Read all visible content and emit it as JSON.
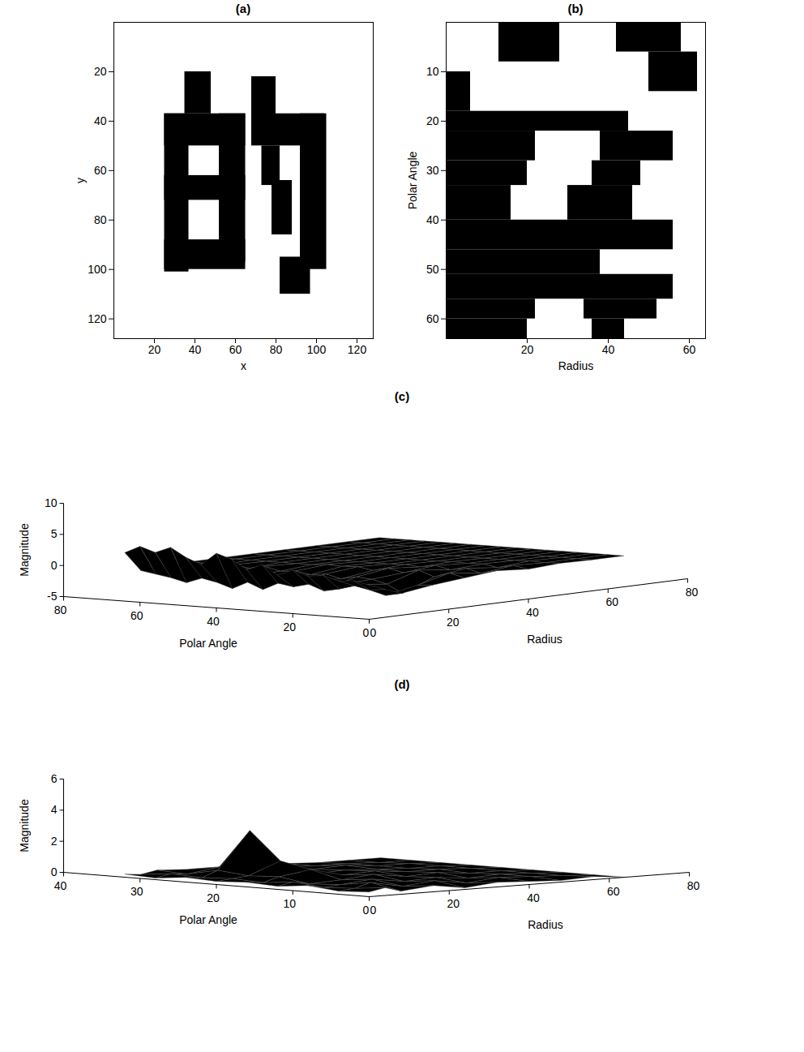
{
  "chart_data": [
    {
      "type": "image",
      "title": "(a)",
      "x_label": "x",
      "y_label": "y",
      "xlim": [
        0,
        128
      ],
      "ylim": [
        128,
        0
      ],
      "xticks": [
        20,
        40,
        60,
        80,
        100,
        120
      ],
      "yticks": [
        20,
        40,
        60,
        80,
        100,
        120
      ],
      "color": "black",
      "black_regions": [
        [
          25,
          37,
          37,
          101
        ],
        [
          35,
          48,
          20,
          37
        ],
        [
          25,
          65,
          37,
          50
        ],
        [
          52,
          65,
          37,
          97
        ],
        [
          25,
          65,
          62,
          72
        ],
        [
          25,
          65,
          88,
          100
        ],
        [
          68,
          80,
          22,
          47
        ],
        [
          68,
          104,
          37,
          50
        ],
        [
          92,
          105,
          37,
          100
        ],
        [
          82,
          97,
          95,
          110
        ],
        [
          73,
          82,
          50,
          66
        ],
        [
          78,
          88,
          64,
          86
        ]
      ]
    },
    {
      "type": "image",
      "title": "(b)",
      "x_label": "Radius",
      "y_label": "Polar Angle",
      "xlim": [
        0,
        64
      ],
      "ylim": [
        64,
        0
      ],
      "xticks": [
        20,
        40,
        60
      ],
      "yticks": [
        10,
        20,
        30,
        40,
        50,
        60
      ],
      "color": "black",
      "black_regions": [
        [
          13,
          28,
          0,
          8
        ],
        [
          42,
          58,
          0,
          6
        ],
        [
          50,
          62,
          6,
          14
        ],
        [
          0,
          6,
          10,
          18
        ],
        [
          0,
          45,
          18,
          22
        ],
        [
          0,
          22,
          22,
          28
        ],
        [
          38,
          56,
          22,
          28
        ],
        [
          0,
          20,
          28,
          33
        ],
        [
          36,
          48,
          28,
          33
        ],
        [
          0,
          16,
          33,
          40
        ],
        [
          30,
          46,
          33,
          40
        ],
        [
          0,
          56,
          40,
          46
        ],
        [
          0,
          38,
          46,
          51
        ],
        [
          0,
          56,
          51,
          56
        ],
        [
          0,
          22,
          56,
          60
        ],
        [
          34,
          52,
          56,
          60
        ],
        [
          0,
          20,
          60,
          64
        ],
        [
          36,
          44,
          60,
          64
        ]
      ]
    },
    {
      "type": "surface",
      "title": "(c)",
      "x_label": "Polar Angle",
      "y_label": "Radius",
      "z_label": "Magnitude",
      "xlim": [
        0,
        80
      ],
      "xticks": [
        0,
        20,
        40,
        60,
        80
      ],
      "ylim": [
        0,
        80
      ],
      "yticks": [
        0,
        20,
        40,
        60,
        80
      ],
      "zlim": [
        -5,
        10
      ],
      "zticks": [
        -5,
        0,
        5,
        10
      ],
      "color": "black",
      "x": [
        0,
        4,
        8,
        12,
        16,
        20,
        24,
        28,
        32,
        36,
        40,
        44,
        48,
        52,
        56,
        60,
        64
      ],
      "y": [
        0,
        4,
        8,
        16,
        24,
        32,
        40,
        48,
        56,
        64
      ],
      "z": [
        [
          0.5,
          -0.5,
          -1.5,
          -0.8,
          -0.3,
          0.2,
          -0.2,
          0.1,
          0,
          0
        ],
        [
          1.0,
          -0.8,
          -2.0,
          -1.0,
          0.3,
          -0.4,
          0.2,
          0,
          0,
          0
        ],
        [
          0.8,
          -0.3,
          -1.2,
          -2.5,
          -0.5,
          0.2,
          -0.3,
          0.1,
          0,
          0
        ],
        [
          1.5,
          -1.0,
          -0.6,
          -1.2,
          0.4,
          -0.2,
          0.1,
          0,
          0,
          0
        ],
        [
          1.2,
          -1.5,
          -0.8,
          -0.6,
          -0.2,
          0.3,
          0,
          0,
          0,
          0
        ],
        [
          2.0,
          -0.6,
          -1.8,
          -0.4,
          0.3,
          -0.1,
          0.1,
          0,
          0,
          0
        ],
        [
          1.0,
          -1.2,
          -0.5,
          -0.9,
          -0.2,
          0.1,
          0,
          0,
          0,
          0
        ],
        [
          2.5,
          -0.8,
          -1.0,
          -0.3,
          0.2,
          0,
          0,
          0,
          0,
          0
        ],
        [
          1.5,
          -2.0,
          -0.4,
          -0.6,
          0.1,
          0,
          0,
          0,
          0,
          0
        ],
        [
          3.0,
          -1.0,
          -1.5,
          -0.2,
          0.2,
          0,
          0,
          0,
          0,
          0
        ],
        [
          3.8,
          -2.2,
          -0.6,
          -0.4,
          0,
          0,
          0,
          0,
          0,
          0
        ],
        [
          1.8,
          -1.4,
          -0.9,
          0.2,
          0,
          0,
          0,
          0,
          0,
          0
        ],
        [
          2.8,
          -0.9,
          -0.5,
          -0.3,
          0,
          0,
          0,
          0,
          0,
          0
        ],
        [
          4.2,
          -1.8,
          -1.0,
          0.1,
          0,
          0,
          0,
          0,
          0,
          0
        ],
        [
          3.2,
          -1.2,
          -0.4,
          -0.2,
          0,
          0,
          0,
          0,
          0,
          0
        ],
        [
          4.0,
          -0.8,
          -0.6,
          0,
          0,
          0,
          0,
          0,
          0,
          0
        ],
        [
          2.8,
          -0.4,
          -0.2,
          0,
          0,
          0,
          0,
          0,
          0,
          0
        ]
      ]
    },
    {
      "type": "surface",
      "title": "(d)",
      "x_label": "Polar Angle",
      "y_label": "Radius",
      "z_label": "Magnitude",
      "xlim": [
        0,
        40
      ],
      "xticks": [
        0,
        10,
        20,
        30,
        40
      ],
      "ylim": [
        0,
        80
      ],
      "yticks": [
        0,
        20,
        40,
        60,
        80
      ],
      "zlim": [
        0,
        6
      ],
      "zticks": [
        0,
        2,
        4,
        6
      ],
      "color": "black",
      "x": [
        0,
        4,
        8,
        12,
        16,
        20,
        24,
        28,
        32
      ],
      "y": [
        0,
        4,
        8,
        16,
        24,
        32,
        40,
        48,
        56,
        64
      ],
      "z": [
        [
          0.3,
          0.5,
          0.2,
          0.4,
          0.1,
          0.3,
          0.2,
          0.1,
          0.2,
          0
        ],
        [
          0.2,
          0.3,
          0.6,
          0.2,
          0.4,
          0.1,
          0.3,
          0.2,
          0.1,
          0
        ],
        [
          0.4,
          0.2,
          0.3,
          0.5,
          0.2,
          0.3,
          0.1,
          0.2,
          0.1,
          0
        ],
        [
          0.2,
          0.4,
          0.2,
          0.3,
          0.5,
          0.2,
          0.3,
          0.1,
          0.1,
          0
        ],
        [
          0.3,
          0.2,
          0.5,
          0.8,
          0.3,
          0.4,
          0.2,
          0.2,
          0.1,
          0
        ],
        [
          0.2,
          0.3,
          0.4,
          1.2,
          0.2,
          0.3,
          0.2,
          0.1,
          0.1,
          0
        ],
        [
          0.3,
          0.2,
          0.6,
          3.0,
          0.4,
          0.2,
          0.3,
          0.1,
          0.1,
          0
        ],
        [
          0.1,
          0.3,
          0.2,
          0.5,
          0.3,
          0.2,
          0.1,
          0.1,
          0,
          0
        ],
        [
          0.2,
          0.1,
          0.3,
          0.2,
          0.2,
          0.1,
          0.1,
          0,
          0,
          0
        ]
      ]
    }
  ]
}
